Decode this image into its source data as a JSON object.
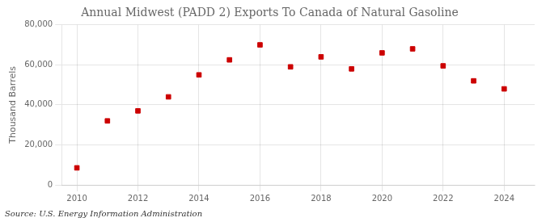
{
  "chart_data": {
    "type": "scatter",
    "title": "Annual Midwest (PADD 2) Exports To Canada of Natural Gasoline",
    "ylabel": "Thousand Barrels",
    "source": "Source: U.S. Energy Information Administration",
    "x": [
      2010,
      2011,
      2012,
      2013,
      2014,
      2015,
      2016,
      2017,
      2018,
      2019,
      2020,
      2021,
      2022,
      2023,
      2024
    ],
    "values": [
      8500,
      32000,
      37000,
      44000,
      55000,
      62500,
      70000,
      59000,
      64000,
      58000,
      66000,
      68000,
      59500,
      52000,
      48000
    ],
    "color": "#cc0000",
    "marker": "square",
    "xlim": [
      2009.5,
      2025.0
    ],
    "xticks": [
      2010,
      2012,
      2014,
      2016,
      2018,
      2020,
      2022,
      2024
    ],
    "ylim": [
      0,
      80000
    ],
    "yticks": [
      0,
      {
        "value": 20000,
        "label": "20,000"
      },
      {
        "value": 40000,
        "label": "40,000"
      },
      {
        "value": 60000,
        "label": "60,000"
      },
      {
        "value": 80000,
        "label": "80,000"
      }
    ],
    "grid": true
  }
}
